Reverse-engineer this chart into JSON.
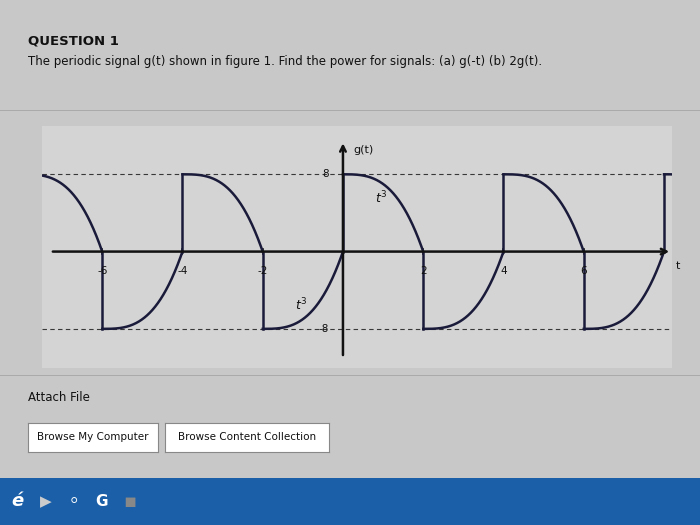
{
  "title_bold": "QUESTION 1",
  "subtitle": "The periodic signal g(t) shown in figure 1. Find the power for signals: (a) g(-t) (b) 2g(t).",
  "ylabel": "g(t)",
  "xlabel": "t",
  "bg_color": "#c8c8c8",
  "plot_bg": "#d4d4d4",
  "text_color": "#111111",
  "axis_color": "#111111",
  "signal_color": "#1a1a3a",
  "period": 4,
  "amplitude": 8,
  "xlim": [
    -7.5,
    8.2
  ],
  "ylim": [
    -12,
    13
  ],
  "xticks": [
    -6,
    -4,
    -2,
    2,
    4,
    6
  ],
  "yticks_pos": [
    8
  ],
  "yticks_neg": [
    -8
  ],
  "t3_upper_x": 0.8,
  "t3_upper_y": 5.5,
  "t3_lower_x": -1.2,
  "t3_lower_y": -5.5,
  "attach_file_text": "Attach File",
  "browse_texts": [
    "Browse My Computer",
    "Browse Content Collection"
  ],
  "taskbar_color": "#1a5fa8",
  "taskbar_icons": [
    "e",
    "►",
    "Q",
    "G",
    "■"
  ]
}
